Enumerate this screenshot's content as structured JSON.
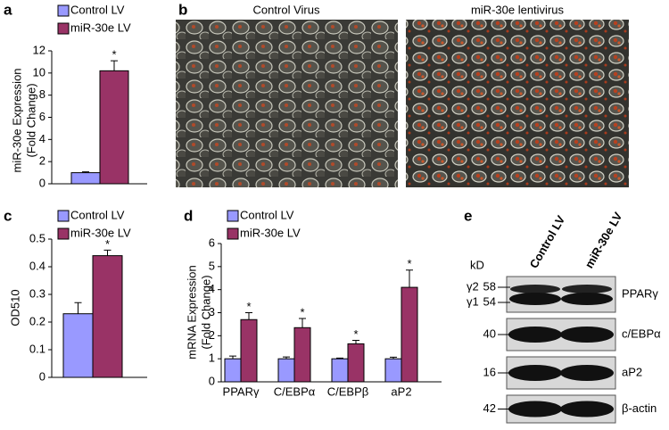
{
  "chart_data": [
    {
      "type": "bar",
      "panel": "a",
      "ylabel": [
        "miR-30e Expression",
        "(Fold Change)"
      ],
      "categories": [
        null
      ],
      "series": [
        {
          "name": "Control LV",
          "color": "#9999ff",
          "values": [
            1.0
          ],
          "errors": [
            0.08
          ]
        },
        {
          "name": "miR-30e LV",
          "color": "#993366",
          "values": [
            10.2
          ],
          "errors": [
            0.9
          ]
        }
      ],
      "significance": "*",
      "ylim": [
        0,
        12
      ],
      "yticks": [
        0,
        2,
        4,
        6,
        8,
        10,
        12
      ]
    },
    {
      "type": "bar",
      "panel": "c",
      "ylabel": [
        "OD510"
      ],
      "categories": [
        null
      ],
      "series": [
        {
          "name": "Control LV",
          "color": "#9999ff",
          "values": [
            0.23
          ],
          "errors": [
            0.04
          ]
        },
        {
          "name": "miR-30e LV",
          "color": "#993366",
          "values": [
            0.44
          ],
          "errors": [
            0.02
          ]
        }
      ],
      "significance": "*",
      "ylim": [
        0,
        0.5
      ],
      "yticks": [
        0,
        0.1,
        0.2,
        0.3,
        0.4,
        0.5
      ]
    },
    {
      "type": "bar",
      "panel": "d",
      "ylabel": [
        "mRNA Expression",
        "(Fold Change)"
      ],
      "categories": [
        "PPARγ",
        "C/EBPα",
        "C/EBPβ",
        "aP2"
      ],
      "series": [
        {
          "name": "Control LV",
          "color": "#9999ff",
          "values": [
            1.0,
            1.0,
            1.0,
            1.0
          ],
          "errors": [
            0.12,
            0.08,
            0.03,
            0.07
          ]
        },
        {
          "name": "miR-30e LV",
          "color": "#993366",
          "values": [
            2.7,
            2.35,
            1.65,
            4.1
          ],
          "errors": [
            0.3,
            0.4,
            0.15,
            0.75
          ]
        }
      ],
      "significance": "*",
      "ylim": [
        0,
        6
      ],
      "yticks": [
        0,
        1,
        2,
        3,
        4,
        5,
        6
      ]
    }
  ],
  "micrographs": {
    "panel": "b",
    "titles": [
      "Control Virus",
      "miR-30e lentivirus"
    ]
  },
  "blot": {
    "panel": "e",
    "unit": "kD",
    "columns": [
      "Control LV",
      "miR-30e LV"
    ],
    "rows": [
      {
        "label": "PPARγ",
        "markers": [
          {
            "isoform": "γ2",
            "kd": 58
          },
          {
            "isoform": "γ1",
            "kd": 54
          }
        ]
      },
      {
        "label": "c/EBPα",
        "markers": [
          {
            "kd": 40
          }
        ]
      },
      {
        "label": "aP2",
        "markers": [
          {
            "kd": 16
          }
        ]
      },
      {
        "label": "β-actin",
        "markers": [
          {
            "kd": 42
          }
        ]
      }
    ]
  }
}
